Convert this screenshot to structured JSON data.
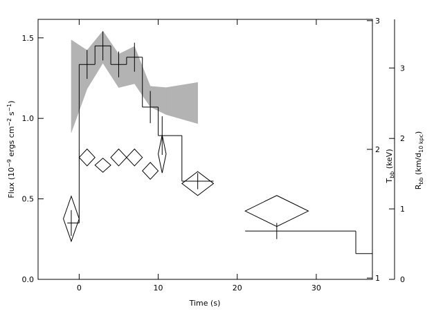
{
  "chart_data": {
    "type": "combo",
    "xlabel": "Time (s)",
    "ylabel": [
      "Flux (10",
      "−9",
      " ergs cm",
      "−2",
      " s",
      "−1",
      ")"
    ],
    "y2label": [
      "T",
      "bb",
      " (keV)"
    ],
    "y3label": [
      "R",
      "bb",
      " (km/d",
      "10 kpc",
      ")"
    ],
    "xlim": [
      -5.2,
      37.1
    ],
    "xticks": [
      0,
      10,
      20,
      30
    ],
    "ylim": [
      0,
      1.615
    ],
    "yticks": [
      {
        "value": 0,
        "label": "0.0"
      },
      0.5,
      {
        "value": 1,
        "label": "1.0"
      },
      1.5
    ],
    "y2lim": [
      0.99,
      3.01
    ],
    "y2ticks": [
      1,
      2,
      3
    ],
    "y3lim": [
      0,
      3.69
    ],
    "y3ticks": [
      0,
      1,
      2,
      3
    ],
    "series": [
      {
        "type": "band",
        "axis": "y2",
        "color": "#b3b3b3",
        "x": [
          -1,
          1,
          3,
          5,
          7,
          9,
          11,
          15
        ],
        "high": [
          2.85,
          2.77,
          2.92,
          2.74,
          2.8,
          2.49,
          2.48,
          2.52
        ],
        "low": [
          2.13,
          2.47,
          2.67,
          2.48,
          2.51,
          2.33,
          2.27,
          2.2
        ]
      },
      {
        "type": "step",
        "axis": "y",
        "color": "#000000",
        "bins": [
          -1.5,
          0,
          2,
          4,
          6,
          8,
          10,
          13,
          17,
          21,
          35,
          37.1
        ],
        "values": [
          0.35,
          1.335,
          1.45,
          1.335,
          1.38,
          1.07,
          0.893,
          0.61,
          null,
          0.3,
          0.16
        ]
      },
      {
        "type": "errorbar",
        "axis": "y",
        "color": "#000000",
        "x": [
          -1,
          1,
          3,
          5,
          7,
          9,
          10.5,
          15,
          25
        ],
        "values": [
          0.35,
          1.335,
          1.45,
          1.335,
          1.38,
          1.07,
          0.893,
          0.61,
          0.3
        ],
        "errors": [
          0.08,
          0.09,
          0.09,
          0.08,
          0.09,
          0.1,
          0.12,
          0.05,
          0.05
        ]
      },
      {
        "type": "diamond",
        "axis": "y3",
        "color": "#000000",
        "x": [
          -1,
          1,
          3,
          5,
          7,
          9,
          10.5,
          15,
          25
        ],
        "xerr": [
          1,
          1,
          1,
          1,
          1,
          1,
          0.5,
          2,
          4
        ],
        "values": [
          0.86,
          1.73,
          1.62,
          1.73,
          1.73,
          1.54,
          1.78,
          1.36,
          0.97
        ],
        "errors": [
          0.32,
          0.12,
          0.1,
          0.12,
          0.12,
          0.12,
          0.27,
          0.17,
          0.22
        ]
      }
    ]
  }
}
